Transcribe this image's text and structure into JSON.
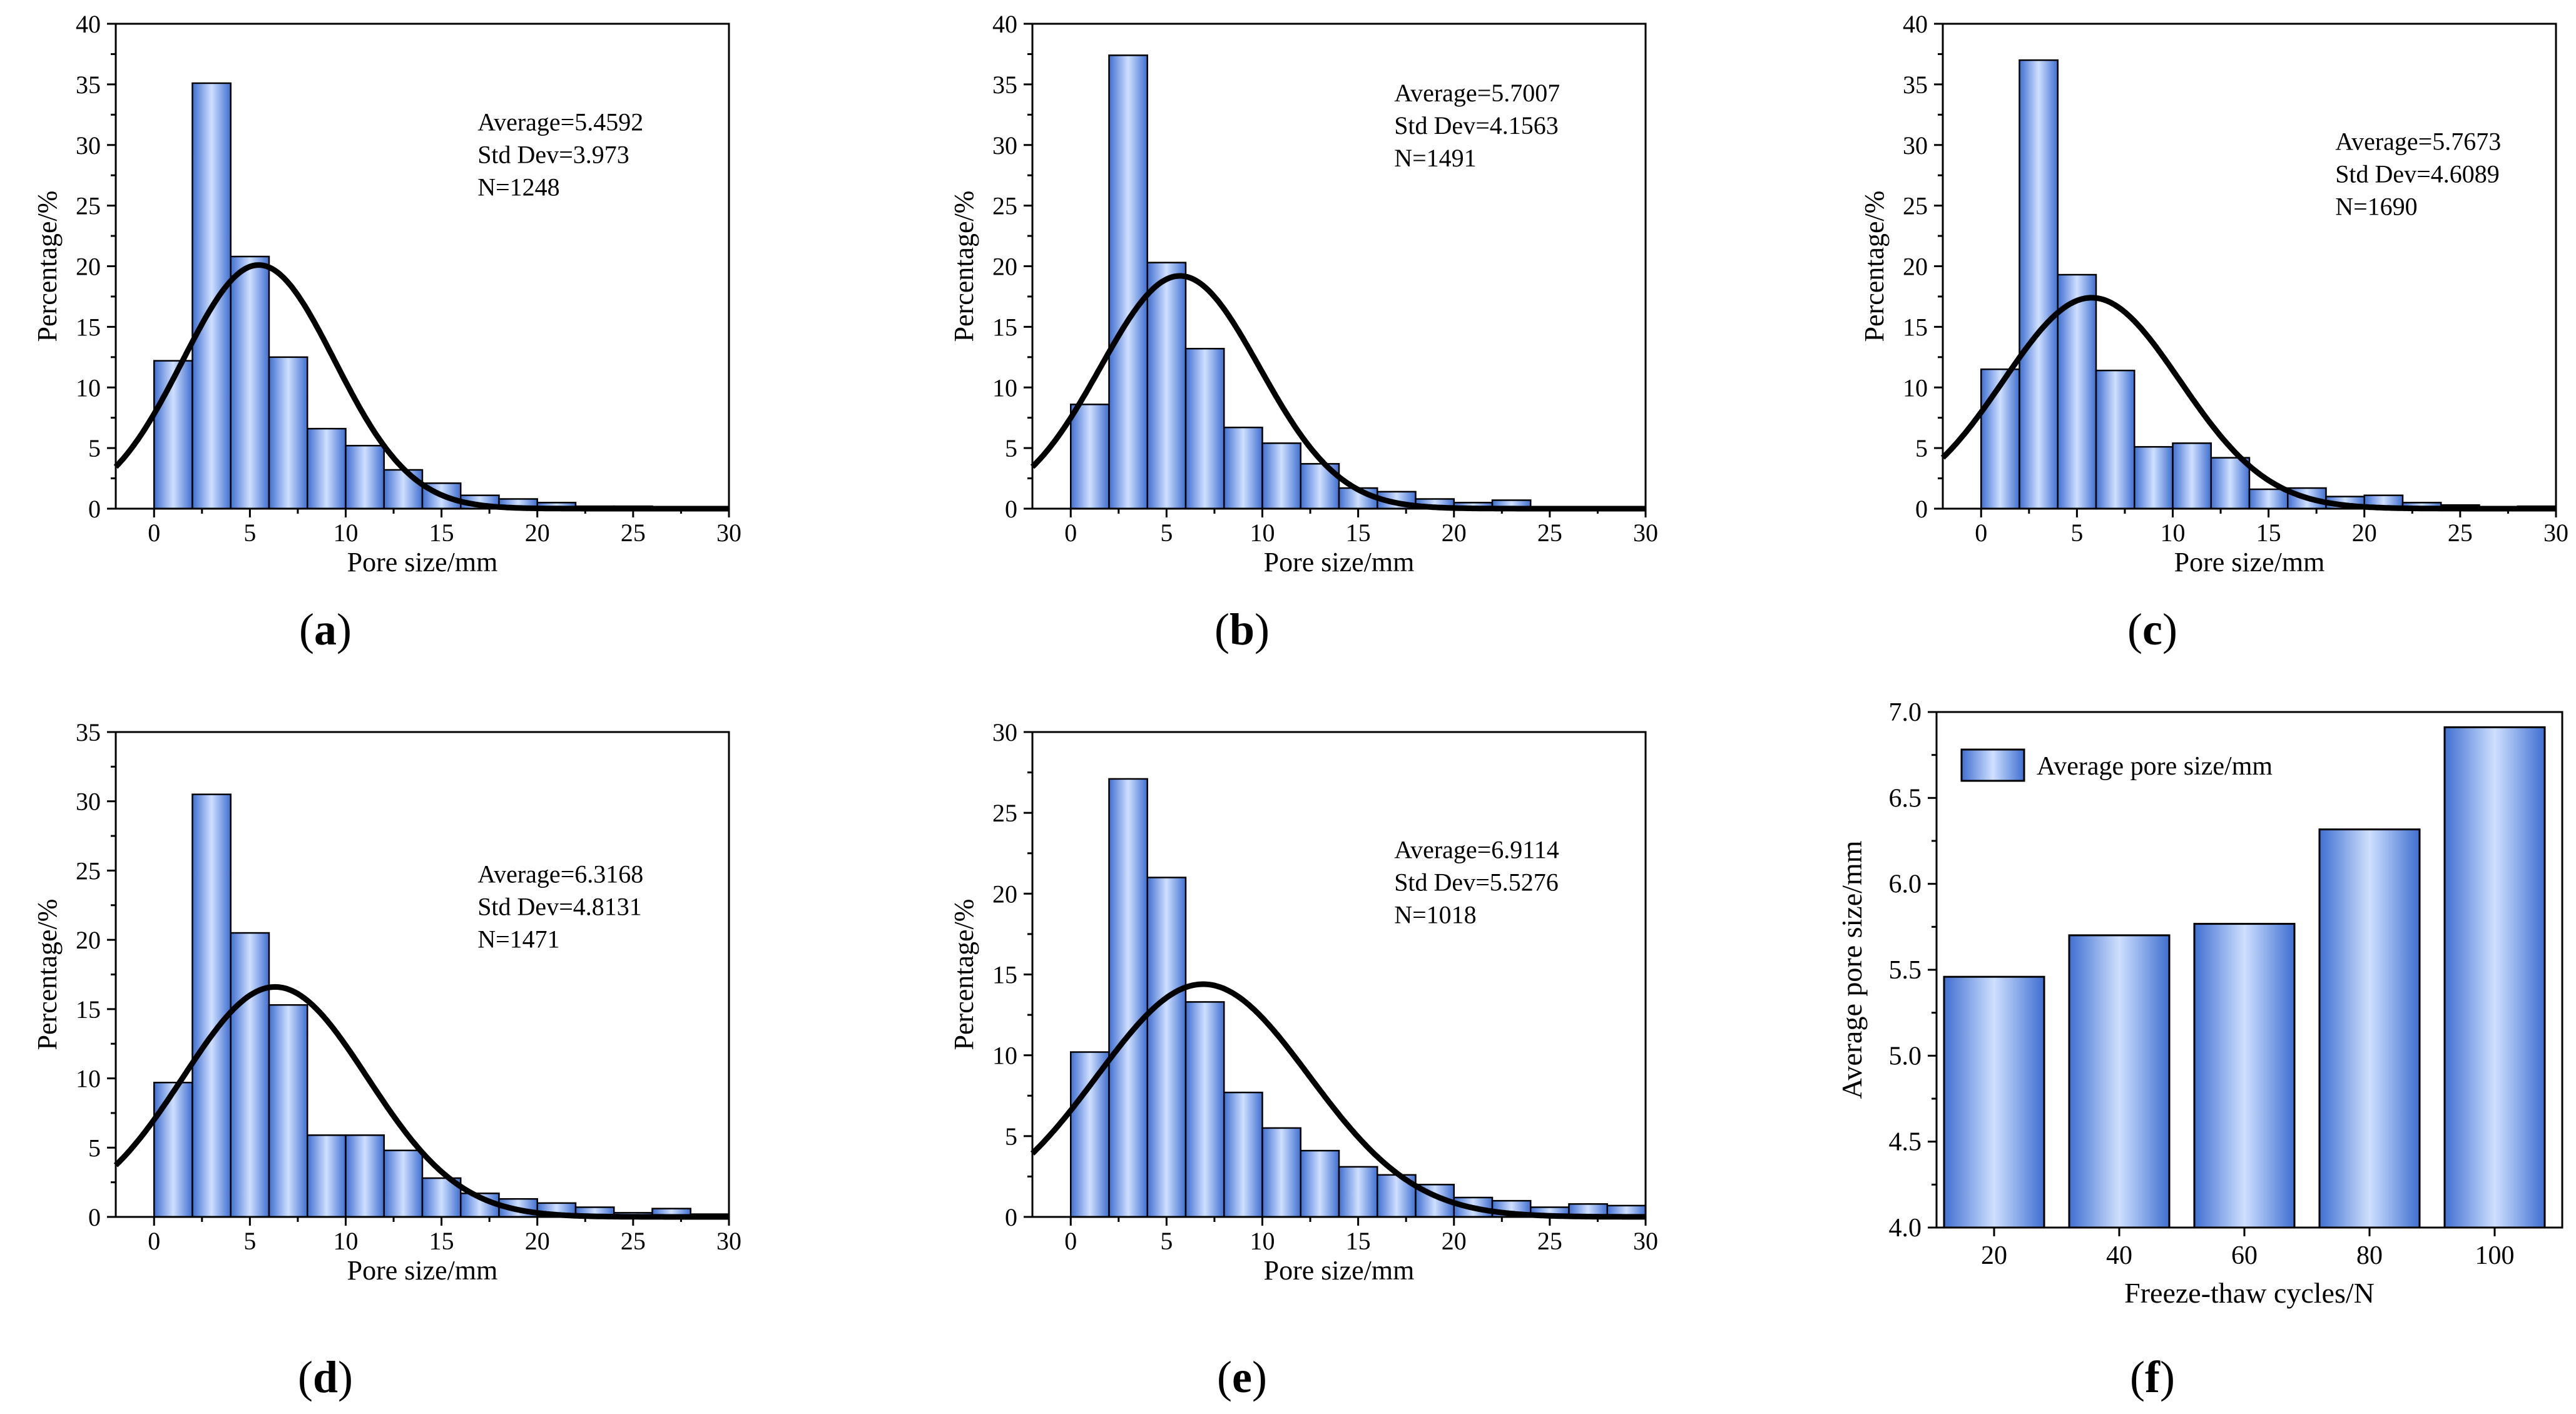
{
  "colors": {
    "bar_edge": "#000000",
    "bar_light": "#cfe0ff",
    "bar_mid": "#86aef0",
    "bar_dark": "#3f6fd0",
    "curve": "#000000",
    "axis": "#000000"
  },
  "chart_data": [
    {
      "id": "a",
      "type": "bar",
      "panel_label": "(a)",
      "panel_letter": "a",
      "xlabel": "Pore size/mm",
      "ylabel": "Percentage/%",
      "xlim": [
        -2,
        30
      ],
      "ylim": [
        0,
        40
      ],
      "xticks": [
        0,
        5,
        10,
        15,
        20,
        25,
        30
      ],
      "yticks": [
        0,
        5,
        10,
        15,
        20,
        25,
        30,
        35,
        40
      ],
      "bin_edges": [
        0,
        2,
        4,
        6,
        8,
        10,
        12,
        14,
        16,
        18,
        20,
        22,
        24,
        26,
        28,
        30
      ],
      "values": [
        12.2,
        35.1,
        20.8,
        12.5,
        6.6,
        5.2,
        3.2,
        2.1,
        1.1,
        0.8,
        0.5,
        0.2,
        0.2,
        0.1,
        0.1
      ],
      "fit": {
        "mean": 5.4592,
        "std": 3.973,
        "peak": 20.1
      },
      "annotations": [
        "Average=5.4592",
        "Std Dev=3.973",
        "N=1248"
      ],
      "grid": false,
      "legend": "none"
    },
    {
      "id": "b",
      "type": "bar",
      "panel_label": "(b)",
      "panel_letter": "b",
      "xlabel": "Pore size/mm",
      "ylabel": "Percentage/%",
      "xlim": [
        -2,
        30
      ],
      "ylim": [
        0,
        40
      ],
      "xticks": [
        0,
        5,
        10,
        15,
        20,
        25,
        30
      ],
      "yticks": [
        0,
        5,
        10,
        15,
        20,
        25,
        30,
        35,
        40
      ],
      "bin_edges": [
        0,
        2,
        4,
        6,
        8,
        10,
        12,
        14,
        16,
        18,
        20,
        22,
        24,
        26,
        28,
        30
      ],
      "values": [
        8.6,
        37.4,
        20.3,
        13.2,
        6.7,
        5.4,
        3.7,
        1.7,
        1.4,
        0.8,
        0.5,
        0.7,
        0.1,
        0.1,
        0.1
      ],
      "fit": {
        "mean": 5.7007,
        "std": 4.1563,
        "peak": 19.2
      },
      "annotations": [
        "Average=5.7007",
        "Std Dev=4.1563",
        "N=1491"
      ],
      "grid": false,
      "legend": "none"
    },
    {
      "id": "c",
      "type": "bar",
      "panel_label": "(c)",
      "panel_letter": "c",
      "xlabel": "Pore size/mm",
      "ylabel": "Percentage/%",
      "xlim": [
        -2,
        30
      ],
      "ylim": [
        0,
        40
      ],
      "xticks": [
        0,
        5,
        10,
        15,
        20,
        25,
        30
      ],
      "yticks": [
        0,
        5,
        10,
        15,
        20,
        25,
        30,
        35,
        40
      ],
      "bin_edges": [
        0,
        2,
        4,
        6,
        8,
        10,
        12,
        14,
        16,
        18,
        20,
        22,
        24,
        26,
        28,
        30
      ],
      "values": [
        11.5,
        37.0,
        19.3,
        11.4,
        5.1,
        5.4,
        4.2,
        1.6,
        1.7,
        1.0,
        1.1,
        0.5,
        0.3,
        0.1,
        0.2
      ],
      "fit": {
        "mean": 5.7673,
        "std": 4.6089,
        "peak": 17.4
      },
      "annotations": [
        "Average=5.7673",
        "Std Dev=4.6089",
        "N=1690"
      ],
      "grid": false,
      "legend": "none"
    },
    {
      "id": "d",
      "type": "bar",
      "panel_label": "(d)",
      "panel_letter": "d",
      "xlabel": "Pore size/mm",
      "ylabel": "Percentage/%",
      "xlim": [
        -2,
        30
      ],
      "ylim": [
        0,
        35
      ],
      "xticks": [
        0,
        5,
        10,
        15,
        20,
        25,
        30
      ],
      "yticks": [
        0,
        5,
        10,
        15,
        20,
        25,
        30,
        35
      ],
      "bin_edges": [
        0,
        2,
        4,
        6,
        8,
        10,
        12,
        14,
        16,
        18,
        20,
        22,
        24,
        26,
        28,
        30
      ],
      "values": [
        9.7,
        30.5,
        20.5,
        15.3,
        5.9,
        5.9,
        4.8,
        2.8,
        1.7,
        1.3,
        1.0,
        0.7,
        0.3,
        0.6,
        0.2
      ],
      "fit": {
        "mean": 6.3168,
        "std": 4.8131,
        "peak": 16.6
      },
      "annotations": [
        "Average=6.3168",
        "Std Dev=4.8131",
        "N=1471"
      ],
      "grid": false,
      "legend": "none"
    },
    {
      "id": "e",
      "type": "bar",
      "panel_label": "(e)",
      "panel_letter": "e",
      "xlabel": "Pore size/mm",
      "ylabel": "Percentage/%",
      "xlim": [
        -2,
        30
      ],
      "ylim": [
        0,
        30
      ],
      "xticks": [
        0,
        5,
        10,
        15,
        20,
        25,
        30
      ],
      "yticks": [
        0,
        5,
        10,
        15,
        20,
        25,
        30
      ],
      "bin_edges": [
        0,
        2,
        4,
        6,
        8,
        10,
        12,
        14,
        16,
        18,
        20,
        22,
        24,
        26,
        28,
        30
      ],
      "values": [
        10.2,
        27.1,
        21.0,
        13.3,
        7.7,
        5.5,
        4.1,
        3.1,
        2.6,
        2.0,
        1.2,
        1.0,
        0.6,
        0.8,
        0.7
      ],
      "fit": {
        "mean": 6.9114,
        "std": 5.5276,
        "peak": 14.4
      },
      "annotations": [
        "Average=6.9114",
        "Std Dev=5.5276",
        "N=1018"
      ],
      "grid": false,
      "legend": "none"
    },
    {
      "id": "f",
      "type": "bar",
      "panel_label": "(f)",
      "panel_letter": "f",
      "xlabel": "Freeze-thaw cycles/N",
      "ylabel": "Average pore size/mm",
      "categories": [
        "20",
        "40",
        "60",
        "80",
        "100"
      ],
      "values": [
        5.4592,
        5.7007,
        5.7673,
        6.3168,
        6.9114
      ],
      "ylim": [
        4.0,
        7.0
      ],
      "yticks": [
        "4.0",
        "4.5",
        "5.0",
        "5.5",
        "6.0",
        "6.5",
        "7.0"
      ],
      "series": [
        {
          "name": "Average pore size/mm",
          "values": [
            5.4592,
            5.7007,
            5.7673,
            6.3168,
            6.9114
          ]
        }
      ],
      "grid": false,
      "legend": "top-left"
    }
  ]
}
